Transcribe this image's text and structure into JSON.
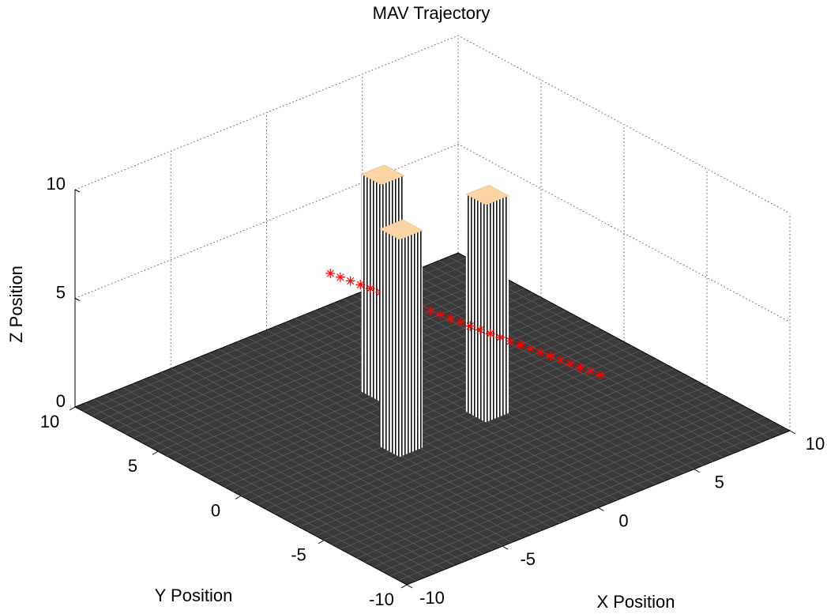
{
  "chart_data": {
    "type": "scatter3d",
    "title": "MAV Trajectory",
    "xlabel": "X Position",
    "ylabel": "Y Position",
    "zlabel": "Z Position",
    "xlim": [
      -10,
      10
    ],
    "ylim": [
      -10,
      10
    ],
    "zlim": [
      0,
      10
    ],
    "xticks": [
      -10,
      -5,
      0,
      5,
      10
    ],
    "yticks": [
      -10,
      -5,
      0,
      5,
      10
    ],
    "zticks": [
      0,
      5,
      10
    ],
    "grid": true,
    "surface_color": "#3a3a3a",
    "obstacle_top_color": "#fcd5a5",
    "obstacles": [
      {
        "x": 0,
        "y": 3,
        "height": 10
      },
      {
        "x": -2.5,
        "y": -1,
        "height": 10
      },
      {
        "x": 2,
        "y": -1,
        "height": 10
      }
    ],
    "series": [
      {
        "color": "#ff0000",
        "x": [
          -1,
          -0.91,
          -0.82,
          -0.73,
          -0.64,
          -0.56,
          -0.47,
          -0.38,
          -0.29,
          -0.2,
          -0.11,
          -0.02,
          0.07,
          0.16,
          0.24,
          0.33,
          0.42,
          0.51,
          0.6,
          0.69,
          0.78,
          0.87,
          0.96,
          1.04,
          1.13,
          1.22,
          1.31,
          1.4
        ],
        "y": [
          5,
          4.5,
          4,
          3.5,
          3,
          2.5,
          2,
          1.5,
          1,
          0.5,
          0,
          -0.5,
          -1,
          -1.5,
          -2,
          -2.5,
          -3,
          -3.5,
          -4,
          -4.5,
          -5,
          -5.5,
          -6,
          -6.5,
          -7,
          -7.5,
          -8,
          -8.5
        ],
        "z": [
          5,
          5,
          5,
          5,
          5,
          5,
          5,
          5,
          5,
          5,
          5,
          5,
          5,
          5,
          5,
          5,
          5,
          5,
          5,
          5,
          5,
          5,
          5,
          5,
          5,
          5,
          5,
          5
        ]
      }
    ]
  }
}
